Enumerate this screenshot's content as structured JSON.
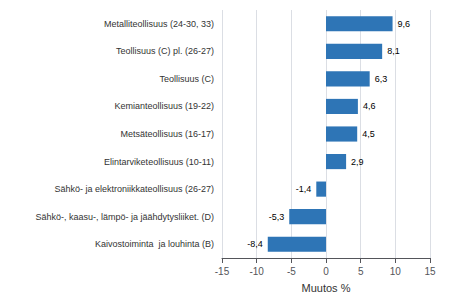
{
  "chart_data": {
    "type": "bar",
    "orientation": "horizontal",
    "categories": [
      "Kaivostoiminta  ja louhinta (B)",
      "Sähkö-, kaasu-, lämpö- ja jäähdytysliiket. (D)",
      "Sähkö- ja elektroniikkateollisuus (26-27)",
      "Elintarviketeollisuus (10-11)",
      "Metsäteollisuus (16-17)",
      "Kemianteollisuus (19-22)",
      "Teollisuus (C)",
      "Teollisuus (C) pl. (26-27)",
      "Metalliteollisuus (24-30, 33)"
    ],
    "values": [
      -8.4,
      -5.3,
      -1.4,
      2.9,
      4.5,
      4.6,
      6.3,
      8.1,
      9.6
    ],
    "value_labels": [
      "-8,4",
      "-5,3",
      "-1,4",
      "2,9",
      "4,5",
      "4,6",
      "6,3",
      "8,1",
      "9,6"
    ],
    "data_labels": true,
    "color": "#2E75B6",
    "xlabel": "Muutos %",
    "xlim": [
      -15,
      15
    ],
    "xticks": [
      -15,
      -10,
      -5,
      0,
      5,
      10,
      15
    ],
    "grid": true
  }
}
